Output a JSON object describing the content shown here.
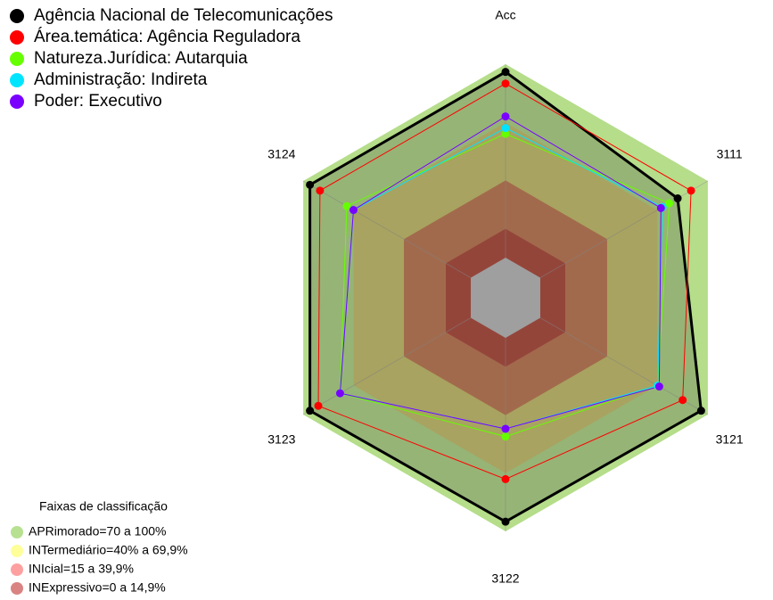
{
  "chart_data": {
    "type": "radar",
    "categories": [
      "Acc",
      "3111",
      "3121",
      "3122",
      "3123",
      "3124"
    ],
    "ylim": [
      0,
      100
    ],
    "series": [
      {
        "name": "Agência Nacional de Telecomunicações",
        "color": "#000000",
        "values": [
          96,
          82,
          96,
          95,
          96,
          96
        ]
      },
      {
        "name": "Área.temática: Agência Reguladora",
        "color": "#ff0000",
        "values": [
          90,
          90,
          85,
          73,
          91,
          90
        ]
      },
      {
        "name": "Natureza.Jurídica: Autarquia",
        "color": "#66ff00",
        "values": [
          64,
          77,
          70,
          51,
          78,
          74
        ]
      },
      {
        "name": "Administração: Indireta",
        "color": "#00e5ff",
        "values": [
          67,
          73,
          70,
          47,
          78,
          70
        ]
      },
      {
        "name": "Poder: Executivo",
        "color": "#7a00ff",
        "values": [
          73,
          72,
          71,
          47,
          78,
          70
        ]
      }
    ],
    "bands_title": "Faixas de classificação",
    "bands": [
      {
        "name": "APRimorado=70 a 100%",
        "color": "#b5dd8a",
        "legend_color": "#b8e091",
        "range": [
          70,
          100
        ]
      },
      {
        "name": "INTermediário=40% a 69,9%",
        "color": "#cdc66c",
        "legend_color": "#ffff99",
        "range": [
          40,
          69.9
        ]
      },
      {
        "name": "INIcial=15 a 39,9%",
        "color": "#c47a52",
        "legend_color": "#ffa0a0",
        "range": [
          15,
          39.9
        ]
      },
      {
        "name": "INExpressivo=0 a 14,9%",
        "color": "#b2483a",
        "legend_color": "#d98383",
        "range": [
          0,
          14.9
        ]
      }
    ]
  }
}
